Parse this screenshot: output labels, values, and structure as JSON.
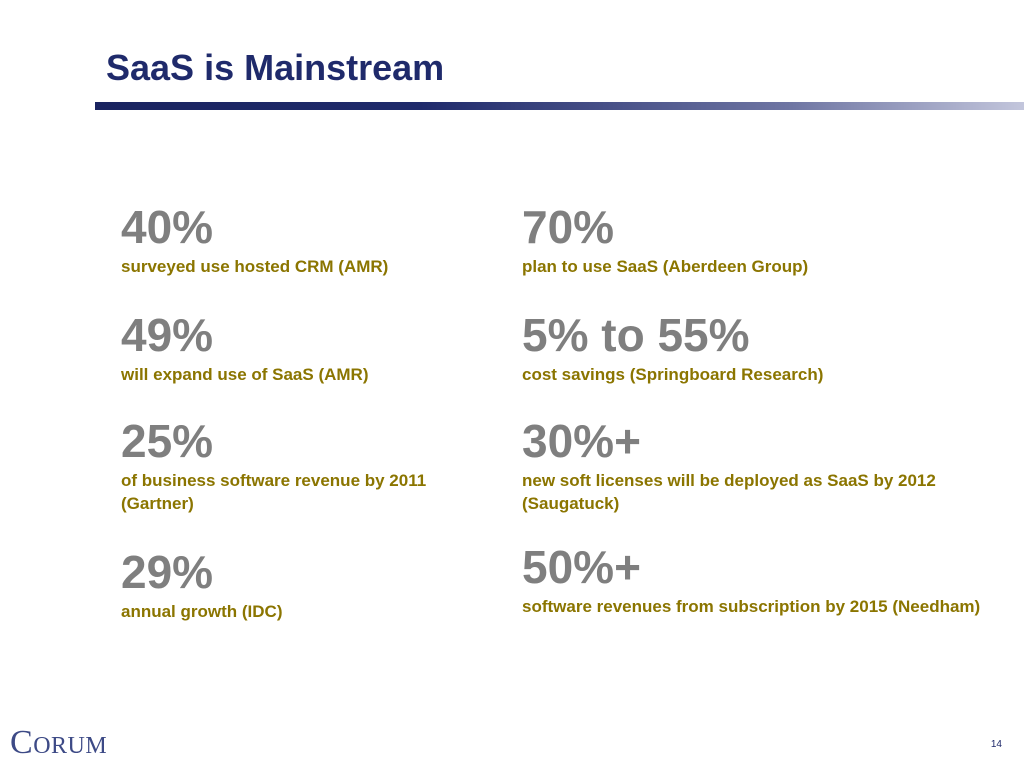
{
  "slide": {
    "title": "SaaS is Mainstream",
    "page_number": "14",
    "logo_text": "Corum"
  },
  "left_stats": [
    {
      "value": "40%",
      "label": "surveyed use hosted CRM (AMR)"
    },
    {
      "value": "49%",
      "label": "will expand use of SaaS (AMR)"
    },
    {
      "value": "25%",
      "label": "of business software revenue by 2011 (Gartner)"
    },
    {
      "value": "29%",
      "label": "annual growth  (IDC)"
    }
  ],
  "right_stats": [
    {
      "value": "70%",
      "label": "plan to use SaaS (Aberdeen Group)"
    },
    {
      "value": "5% to 55%",
      "label": "cost savings (Springboard Research)"
    },
    {
      "value": "30%+",
      "label": "new soft licenses will be deployed as SaaS by 2012 (Saugatuck)"
    },
    {
      "value": "50%+",
      "label": "software revenues from subscription by 2015 (Needham)"
    }
  ],
  "colors": {
    "title": "#1f2a6b",
    "stat_value": "#7f7f7f",
    "stat_label": "#8b7500",
    "logo": "#3d4a86"
  }
}
